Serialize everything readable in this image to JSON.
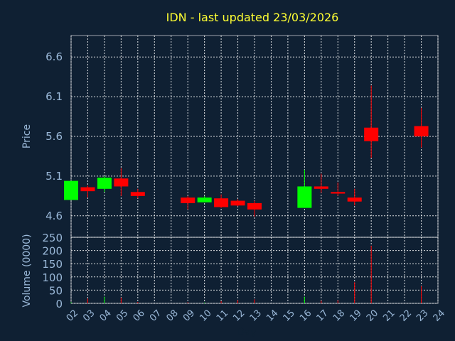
{
  "chart_data": {
    "type": "candlestick",
    "title": "IDN - last updated 23/03/2026",
    "xlabel": "Day",
    "ylabel_price": "Price",
    "ylabel_volume": "Volume (0000)",
    "x_ticks": [
      "02",
      "03",
      "04",
      "05",
      "06",
      "07",
      "08",
      "09",
      "10",
      "11",
      "12",
      "13",
      "14",
      "15",
      "16",
      "17",
      "18",
      "19",
      "20",
      "21",
      "22",
      "23",
      "24"
    ],
    "price_ticks": [
      "4.6",
      "5.1",
      "5.6",
      "6.1",
      "6.6"
    ],
    "price_ylim": [
      4.33,
      6.87
    ],
    "volume_ticks": [
      "0",
      "50",
      "100",
      "150",
      "200",
      "250"
    ],
    "volume_ylim": [
      0,
      250
    ],
    "grid": true,
    "colors": {
      "up": "#00ff00",
      "down": "#ff0000",
      "background": "#0f2033",
      "title": "#ffff33",
      "axis_text": "#9ab8d8"
    },
    "candles": [
      {
        "day": 2,
        "open": 4.8,
        "high": 5.04,
        "low": 4.8,
        "close": 5.04,
        "volume": 4
      },
      {
        "day": 3,
        "open": 4.96,
        "high": 4.98,
        "low": 4.83,
        "close": 4.91,
        "volume": 18
      },
      {
        "day": 4,
        "open": 4.94,
        "high": 5.1,
        "low": 4.9,
        "close": 5.08,
        "volume": 25
      },
      {
        "day": 5,
        "open": 5.07,
        "high": 5.2,
        "low": 4.85,
        "close": 4.97,
        "volume": 22
      },
      {
        "day": 6,
        "open": 4.9,
        "high": 4.94,
        "low": 4.82,
        "close": 4.85,
        "volume": 5
      },
      {
        "day": 9,
        "open": 4.83,
        "high": 4.85,
        "low": 4.68,
        "close": 4.76,
        "volume": 4
      },
      {
        "day": 10,
        "open": 4.77,
        "high": 4.85,
        "low": 4.77,
        "close": 4.83,
        "volume": 3
      },
      {
        "day": 11,
        "open": 4.82,
        "high": 4.87,
        "low": 4.7,
        "close": 4.71,
        "volume": 8
      },
      {
        "day": 12,
        "open": 4.79,
        "high": 4.81,
        "low": 4.72,
        "close": 4.73,
        "volume": 12
      },
      {
        "day": 13,
        "open": 4.76,
        "high": 4.79,
        "low": 4.59,
        "close": 4.68,
        "volume": 15
      },
      {
        "day": 16,
        "open": 4.7,
        "high": 5.18,
        "low": 4.7,
        "close": 4.97,
        "volume": 25
      },
      {
        "day": 17,
        "open": 4.97,
        "high": 5.13,
        "low": 4.89,
        "close": 4.94,
        "volume": 10
      },
      {
        "day": 18,
        "open": 4.9,
        "high": 5.02,
        "low": 4.85,
        "close": 4.88,
        "volume": 12
      },
      {
        "day": 19,
        "open": 4.83,
        "high": 4.94,
        "low": 4.73,
        "close": 4.78,
        "volume": 80
      },
      {
        "day": 20,
        "open": 5.71,
        "high": 6.24,
        "low": 5.33,
        "close": 5.54,
        "volume": 218
      },
      {
        "day": 23,
        "open": 5.73,
        "high": 5.96,
        "low": 5.46,
        "close": 5.6,
        "volume": 65
      }
    ]
  }
}
